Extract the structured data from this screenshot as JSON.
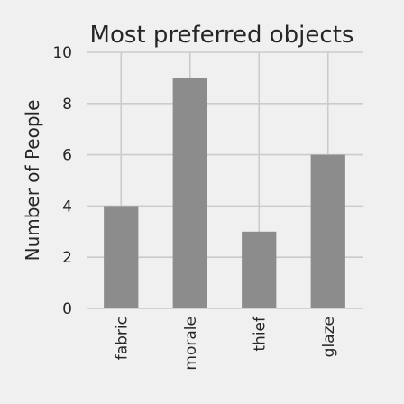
{
  "chart_data": {
    "type": "bar",
    "title": "Most preferred objects",
    "xlabel": "",
    "ylabel": "Number of People",
    "categories": [
      "fabric",
      "morale",
      "thief",
      "glaze"
    ],
    "values": [
      4,
      9,
      3,
      6
    ],
    "ylim": [
      0,
      10
    ],
    "yticks": [
      0,
      2,
      4,
      6,
      8,
      10
    ],
    "grid": true,
    "bar_color": "#8c8c8c",
    "background_color": "#f0f0f0"
  }
}
